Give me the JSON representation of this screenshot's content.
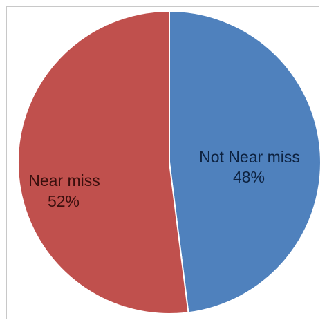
{
  "chart_data": {
    "type": "pie",
    "title": "",
    "slices": [
      {
        "label": "Not Near miss",
        "value": 48,
        "percent_label": "48%",
        "color": "#4f81bd",
        "label_color": "#0d2240"
      },
      {
        "label": "Near miss",
        "value": 52,
        "percent_label": "52%",
        "color": "#c0504d",
        "label_color": "#3a0f0d"
      }
    ],
    "start_angle_deg": 0,
    "direction": "clockwise",
    "slice_border_color": "#ffffff",
    "legend": "none"
  }
}
